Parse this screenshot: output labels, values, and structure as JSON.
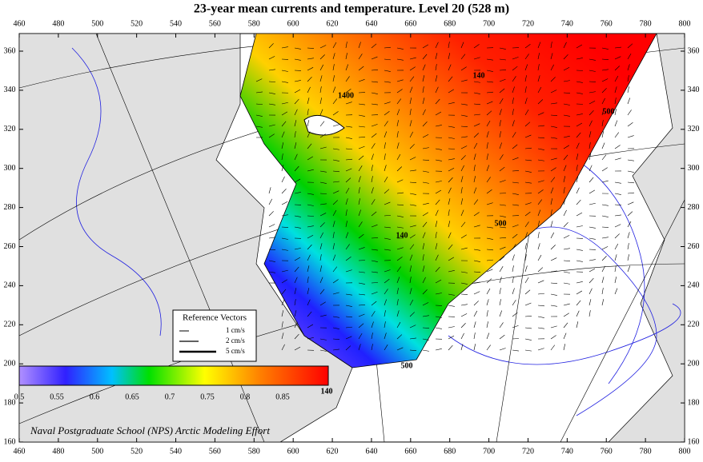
{
  "header": {
    "title": "23-year mean currents and temperature. Level  20 (528 m)"
  },
  "axes": {
    "x_ticks": [
      460,
      480,
      500,
      520,
      540,
      560,
      580,
      600,
      620,
      640,
      660,
      680,
      700,
      720,
      740,
      760,
      780,
      800
    ],
    "y_ticks": [
      160,
      180,
      200,
      220,
      240,
      260,
      280,
      300,
      320,
      340,
      360
    ]
  },
  "legend": {
    "title": "Reference Vectors",
    "items": [
      "1 cm/s",
      "2 cm/s",
      "5 cm/s"
    ]
  },
  "colorbar": {
    "ticks": [
      0.5,
      0.55,
      0.6,
      0.65,
      0.7,
      0.75,
      0.8,
      0.85
    ]
  },
  "contour_labels": [
    "140",
    "500",
    "500",
    "140",
    "500",
    "140",
    "1400"
  ],
  "credit": "Naval Postgraduate School (NPS) Arctic Modeling Effort"
}
